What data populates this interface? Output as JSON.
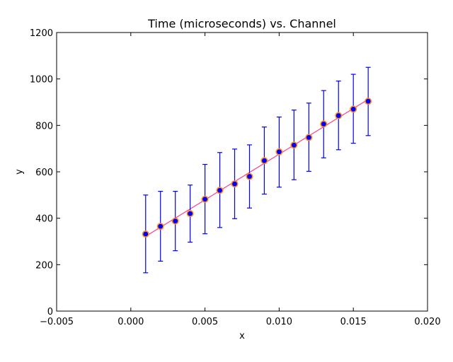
{
  "chart_data": {
    "type": "scatter",
    "title": "Time (microseconds) vs. Channel",
    "xlabel": "x",
    "ylabel": "y",
    "xlim": [
      -0.005,
      0.02
    ],
    "ylim": [
      0,
      1200
    ],
    "xticks": [
      -0.005,
      0.0,
      0.005,
      0.01,
      0.015,
      0.02
    ],
    "xtick_labels": [
      "−0.005",
      "0.000",
      "0.005",
      "0.010",
      "0.015",
      "0.020"
    ],
    "yticks": [
      0,
      200,
      400,
      600,
      800,
      1000,
      1200
    ],
    "ytick_labels": [
      "0",
      "200",
      "400",
      "600",
      "800",
      "1000",
      "1200"
    ],
    "grid": false,
    "colors": {
      "marker_fill": "#0000ff",
      "marker_edge": "#ff8c1a",
      "errorbar": "#0000ff",
      "fit_line": "#ff3b8a"
    },
    "series": [
      {
        "kind": "errorbar",
        "x": [
          0.001,
          0.002,
          0.003,
          0.004,
          0.005,
          0.006,
          0.007,
          0.008,
          0.009,
          0.01,
          0.011,
          0.012,
          0.013,
          0.014,
          0.015,
          0.016
        ],
        "y": [
          332,
          365,
          388,
          420,
          482,
          520,
          548,
          580,
          648,
          686,
          715,
          748,
          806,
          842,
          870,
          904
        ],
        "yerr_low": [
          165,
          215,
          260,
          297,
          333,
          360,
          398,
          444,
          504,
          534,
          566,
          602,
          660,
          695,
          723,
          756
        ],
        "yerr_high": [
          500,
          516,
          516,
          543,
          632,
          683,
          698,
          716,
          793,
          836,
          866,
          896,
          950,
          991,
          1020,
          1050
        ]
      },
      {
        "kind": "fit",
        "x": [
          0.001,
          0.016
        ],
        "y": [
          322,
          912
        ]
      }
    ]
  }
}
